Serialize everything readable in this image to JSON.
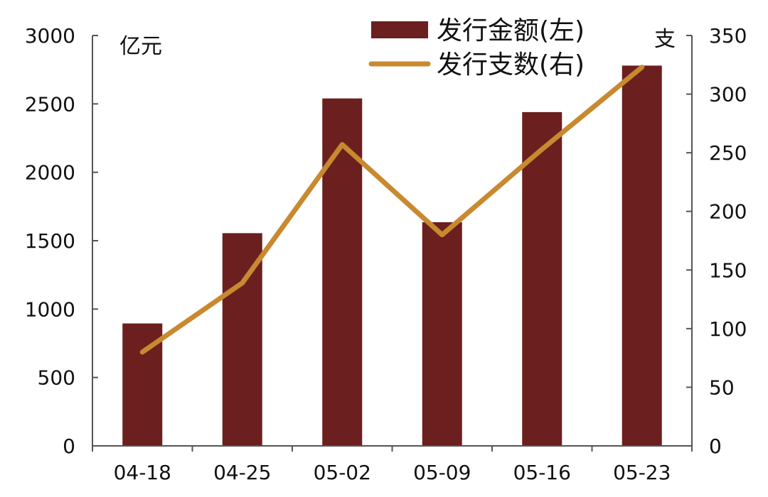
{
  "chart_data": {
    "type": "bar",
    "categories": [
      "04-18",
      "04-25",
      "05-02",
      "05-09",
      "05-16",
      "05-23"
    ],
    "series": [
      {
        "name": "发行金额(左)",
        "type": "bar",
        "axis": "left",
        "color": "#6b1f1f",
        "values": [
          895,
          1555,
          2540,
          1635,
          2440,
          2780
        ]
      },
      {
        "name": "发行支数(右)",
        "type": "line",
        "axis": "right",
        "color": "#c8892f",
        "values": [
          80,
          139,
          257,
          180,
          253,
          323
        ]
      }
    ],
    "y_left": {
      "unit": "亿元",
      "ylim": [
        0,
        3000
      ],
      "ticks": [
        0,
        500,
        1000,
        1500,
        2000,
        2500,
        3000
      ]
    },
    "y_right": {
      "unit": "支",
      "ylim": [
        0,
        350
      ],
      "ticks": [
        0,
        50,
        100,
        150,
        200,
        250,
        300,
        350
      ]
    },
    "legend": "top-right",
    "grid": false
  }
}
